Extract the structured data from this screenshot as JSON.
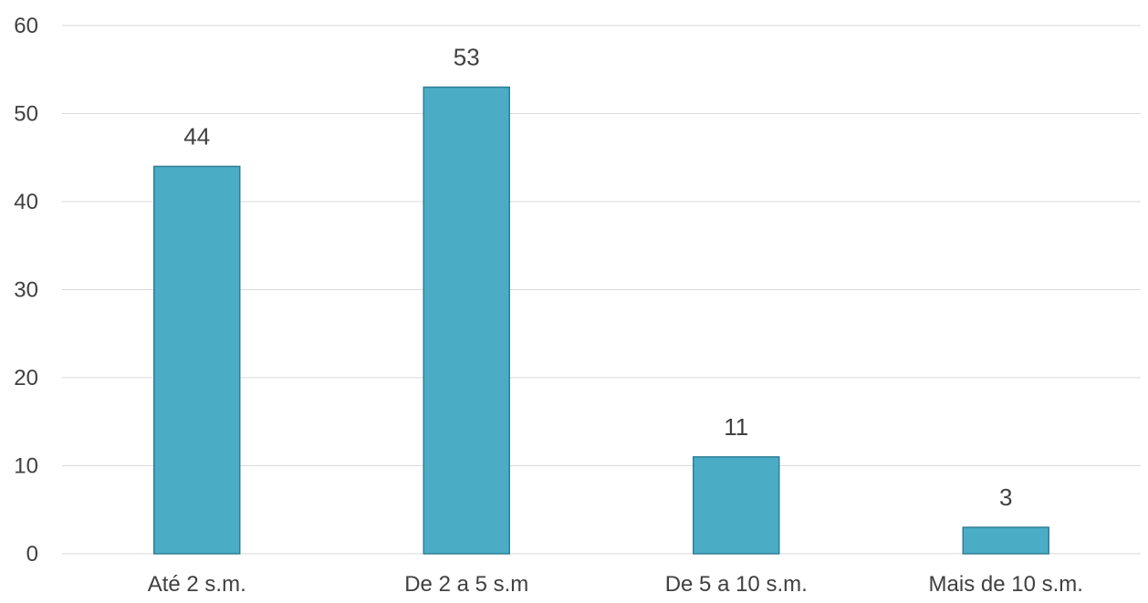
{
  "chart_data": {
    "type": "bar",
    "categories": [
      "Até 2 s.m.",
      "De 2 a 5 s.m",
      "De 5 a 10 s.m.",
      "Mais de 10 s.m."
    ],
    "values": [
      44,
      53,
      11,
      3
    ],
    "data_labels": [
      "44",
      "53",
      "11",
      "3"
    ],
    "title": "",
    "xlabel": "",
    "ylabel": "",
    "ylim": [
      0,
      60
    ],
    "yticks": [
      0,
      10,
      20,
      30,
      40,
      50,
      60
    ],
    "grid": true,
    "legend": "none",
    "bar_color": "#4bacc6",
    "bar_edge_color": "#2f7f95",
    "grid_color": "#d9d9d9",
    "text_color": "#404040"
  }
}
